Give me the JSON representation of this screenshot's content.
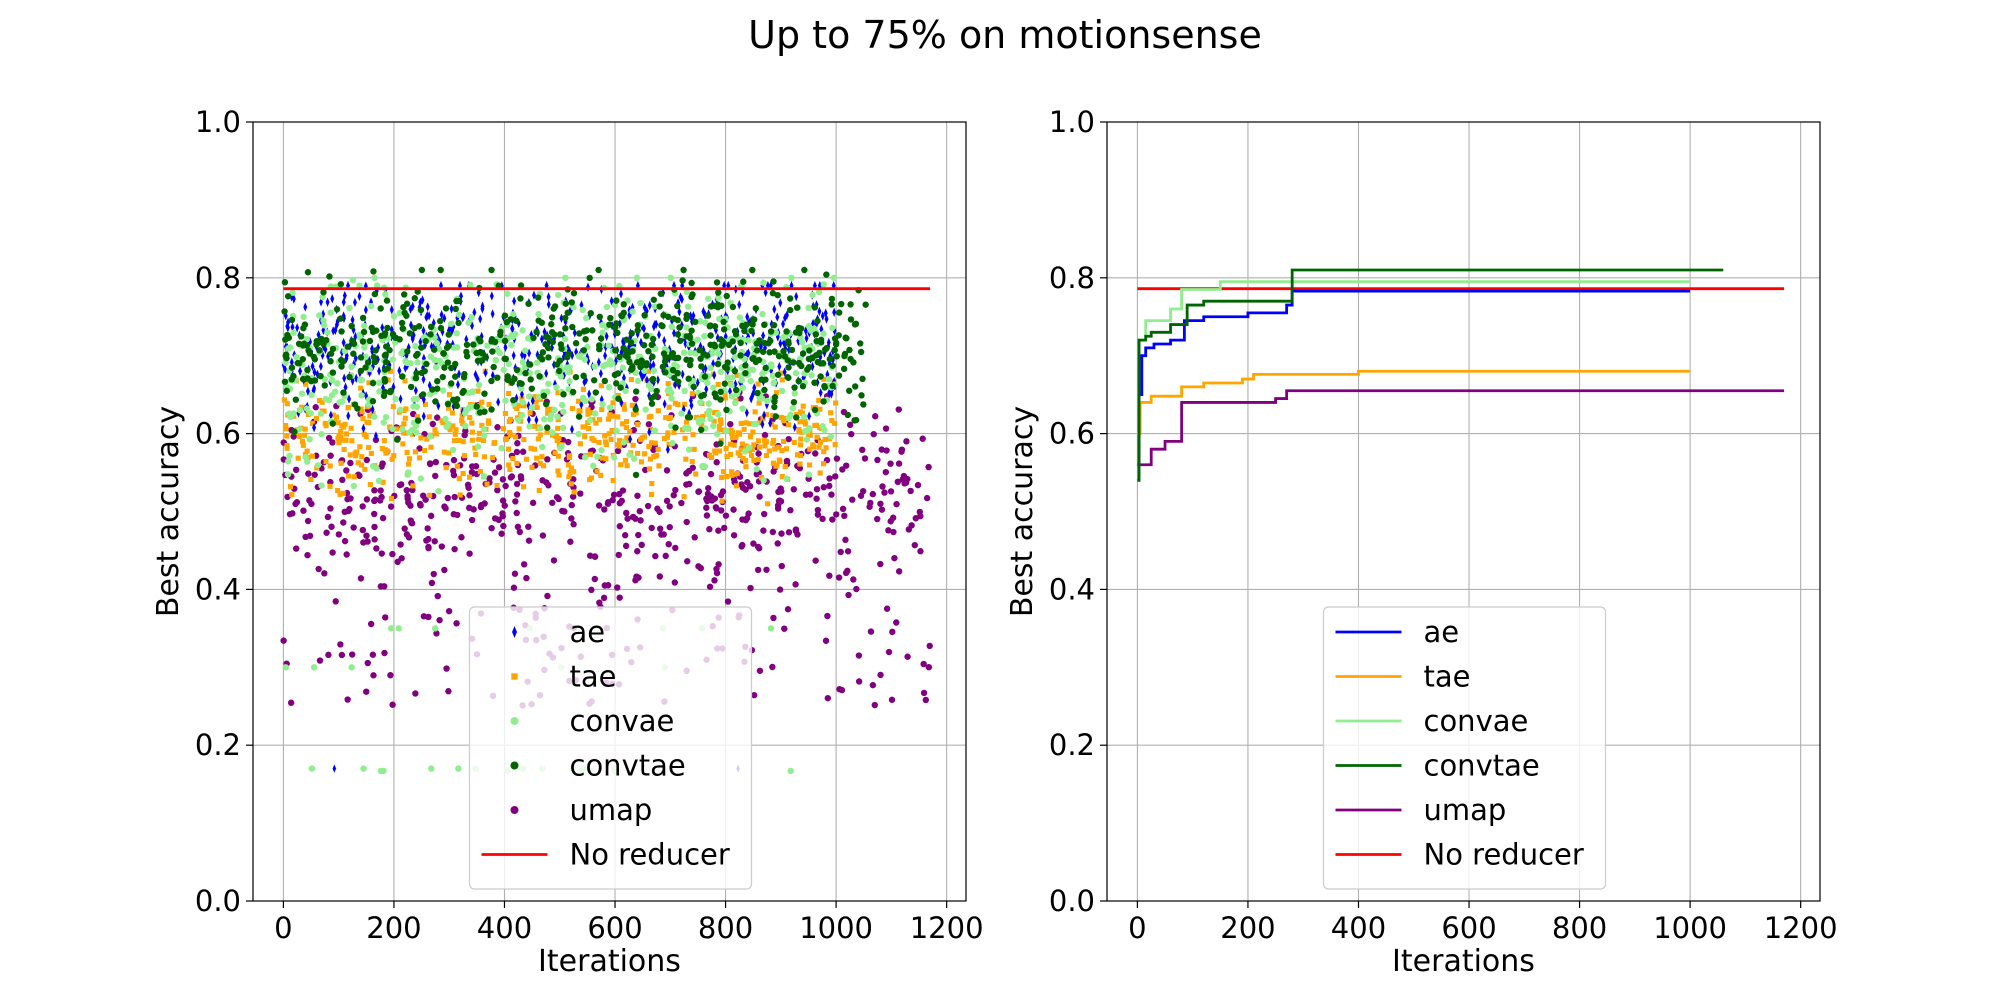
{
  "figure": {
    "title": "Up to 75% on motionsense"
  },
  "chart_data": [
    {
      "type": "scatter",
      "xlabel": "Iterations",
      "ylabel": "Best accuracy",
      "xlim": [
        -55,
        1235
      ],
      "ylim": [
        0.0,
        1.0
      ],
      "xticks": [
        "0",
        "200",
        "400",
        "600",
        "800",
        "1000",
        "1200"
      ],
      "xtick_values": [
        0,
        200,
        400,
        600,
        800,
        1000,
        1200
      ],
      "yticks": [
        "0.0",
        "0.2",
        "0.4",
        "0.6",
        "0.8",
        "1.0"
      ],
      "ytick_values": [
        0.0,
        0.2,
        0.4,
        0.6,
        0.8,
        1.0
      ],
      "grid": true,
      "legend_position": "lower center",
      "series": [
        {
          "name": "ae",
          "color": "#0000ff",
          "marker": "thin-diamond",
          "x_range": [
            0,
            1000
          ],
          "y_center": 0.71,
          "y_spread": 0.045,
          "y_min": 0.48,
          "y_max": 0.79,
          "outliers_y": [
            0.17
          ],
          "approx_points": 1000
        },
        {
          "name": "tae",
          "color": "#ffa500",
          "marker": "square",
          "x_range": [
            0,
            1000
          ],
          "y_center": 0.6,
          "y_spread": 0.035,
          "y_min": 0.5,
          "y_max": 0.68,
          "approx_points": 1000
        },
        {
          "name": "convae",
          "color": "#90ee90",
          "marker": "circle",
          "x_range": [
            0,
            1000
          ],
          "y_center": 0.68,
          "y_spread": 0.06,
          "y_min": 0.23,
          "y_max": 0.8,
          "outliers_y": [
            0.167,
            0.17,
            0.3,
            0.35
          ],
          "approx_points": 1000
        },
        {
          "name": "convtae",
          "color": "#006400",
          "marker": "circle",
          "x_range": [
            0,
            1060
          ],
          "y_center": 0.71,
          "y_spread": 0.045,
          "y_min": 0.45,
          "y_max": 0.81,
          "approx_points": 1060
        },
        {
          "name": "umap",
          "color": "#800080",
          "marker": "circle",
          "x_range": [
            0,
            1170
          ],
          "y_center": 0.52,
          "y_spread": 0.09,
          "y_min": 0.2,
          "y_max": 0.66,
          "approx_points": 1170
        },
        {
          "name": "No reducer",
          "color": "#ff0000",
          "marker": "line",
          "x": [
            0,
            1170
          ],
          "y": [
            0.786,
            0.786
          ]
        }
      ]
    },
    {
      "type": "line",
      "xlabel": "Iterations",
      "ylabel": "Best accuracy",
      "xlim": [
        -55,
        1235
      ],
      "ylim": [
        0.0,
        1.0
      ],
      "xticks": [
        "0",
        "200",
        "400",
        "600",
        "800",
        "1000",
        "1200"
      ],
      "xtick_values": [
        0,
        200,
        400,
        600,
        800,
        1000,
        1200
      ],
      "yticks": [
        "0.0",
        "0.2",
        "0.4",
        "0.6",
        "0.8",
        "1.0"
      ],
      "ytick_values": [
        0.0,
        0.2,
        0.4,
        0.6,
        0.8,
        1.0
      ],
      "grid": true,
      "legend_position": "lower center",
      "series": [
        {
          "name": "ae",
          "color": "#0000ff",
          "step": true,
          "x": [
            0,
            3,
            8,
            15,
            30,
            60,
            85,
            120,
            200,
            270,
            280,
            1000
          ],
          "y": [
            0.56,
            0.65,
            0.7,
            0.71,
            0.715,
            0.72,
            0.745,
            0.75,
            0.755,
            0.765,
            0.783,
            0.783
          ]
        },
        {
          "name": "tae",
          "color": "#ffa500",
          "step": true,
          "x": [
            0,
            5,
            25,
            80,
            120,
            190,
            210,
            400,
            1000
          ],
          "y": [
            0.6,
            0.64,
            0.648,
            0.66,
            0.665,
            0.67,
            0.676,
            0.68,
            0.68
          ]
        },
        {
          "name": "convae",
          "color": "#90ee90",
          "step": true,
          "x": [
            0,
            3,
            15,
            60,
            80,
            150,
            1000
          ],
          "y": [
            0.6,
            0.72,
            0.745,
            0.76,
            0.785,
            0.795,
            0.795
          ]
        },
        {
          "name": "convtae",
          "color": "#006400",
          "step": true,
          "x": [
            0,
            3,
            15,
            25,
            60,
            90,
            120,
            280,
            1060
          ],
          "y": [
            0.54,
            0.72,
            0.725,
            0.73,
            0.74,
            0.765,
            0.77,
            0.81,
            0.81
          ]
        },
        {
          "name": "umap",
          "color": "#800080",
          "step": true,
          "x": [
            0,
            3,
            25,
            50,
            80,
            90,
            250,
            270,
            1170
          ],
          "y": [
            0.56,
            0.56,
            0.58,
            0.59,
            0.64,
            0.64,
            0.645,
            0.655,
            0.655
          ]
        },
        {
          "name": "No reducer",
          "color": "#ff0000",
          "step": false,
          "x": [
            0,
            1170
          ],
          "y": [
            0.786,
            0.786
          ]
        }
      ]
    }
  ]
}
